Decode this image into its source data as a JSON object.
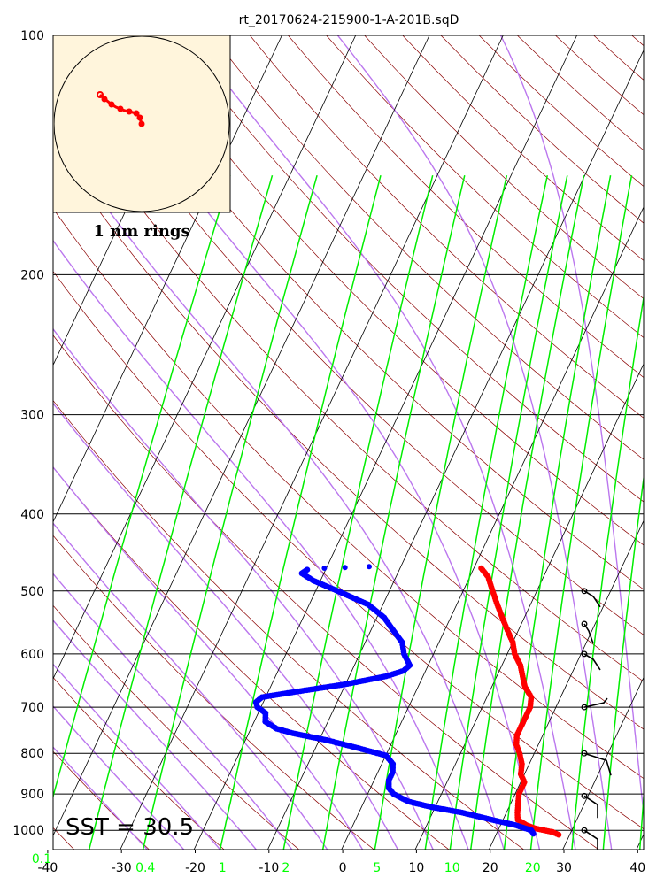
{
  "chart_data": {
    "type": "skew-t log-p",
    "title": "rt_20170624-215900-1-A-201B.sqD",
    "pressure_ticks": [
      100,
      200,
      300,
      400,
      500,
      600,
      700,
      800,
      900,
      1000
    ],
    "temperature_ticks": [
      -40,
      -30,
      -20,
      -10,
      0,
      10,
      20,
      30,
      40
    ],
    "mixing_ratio_ticks": [
      {
        "label": "0.1",
        "value": 0.1
      },
      {
        "label": "0.4",
        "value": 0.4
      },
      {
        "label": "1",
        "value": 1
      },
      {
        "label": "2",
        "value": 2
      },
      {
        "label": "5",
        "value": 5
      },
      {
        "label": "10",
        "value": 10
      },
      {
        "label": "20",
        "value": 20
      }
    ],
    "xlim": [
      -40,
      40
    ],
    "ylim": [
      1050,
      100
    ],
    "sst_label": "SST = 30.5",
    "hodograph_label": "1 nm rings",
    "colors": {
      "temperature": "#ff0000",
      "dewpoint": "#0000ff",
      "dry_adiabat": "#8b0000",
      "moist_adiabat": "#bb77ee",
      "mixing_ratio": "#00ee00",
      "isotherm": "#000000",
      "hodograph_bg": "#fff5dc",
      "hodograph_trace": "#ff0000",
      "wind_barb": "#000000"
    },
    "temperature_series": [
      [
        1013,
        28.5
      ],
      [
        1005,
        27.5
      ],
      [
        995,
        25
      ],
      [
        985,
        23.5
      ],
      [
        970,
        22
      ],
      [
        950,
        21.5
      ],
      [
        925,
        21
      ],
      [
        900,
        20.5
      ],
      [
        870,
        20.5
      ],
      [
        850,
        19.5
      ],
      [
        825,
        19
      ],
      [
        800,
        18
      ],
      [
        780,
        17
      ],
      [
        760,
        16.5
      ],
      [
        740,
        16.5
      ],
      [
        720,
        16.5
      ],
      [
        700,
        16.5
      ],
      [
        680,
        16
      ],
      [
        660,
        14.5
      ],
      [
        640,
        13.5
      ],
      [
        620,
        12.5
      ],
      [
        600,
        11
      ],
      [
        580,
        10
      ],
      [
        560,
        8.5
      ],
      [
        540,
        7
      ],
      [
        520,
        5.5
      ],
      [
        500,
        4
      ],
      [
        480,
        2.5
      ],
      [
        468,
        1
      ]
    ],
    "dewpoint_series": [
      [
        1010,
        25
      ],
      [
        1000,
        24.5
      ],
      [
        985,
        22
      ],
      [
        970,
        18.5
      ],
      [
        950,
        14
      ],
      [
        935,
        9.5
      ],
      [
        920,
        6
      ],
      [
        900,
        3.5
      ],
      [
        885,
        2.5
      ],
      [
        865,
        2
      ],
      [
        845,
        2
      ],
      [
        825,
        1.5
      ],
      [
        805,
        0
      ],
      [
        785,
        -5
      ],
      [
        770,
        -9
      ],
      [
        755,
        -14
      ],
      [
        745,
        -16.5
      ],
      [
        730,
        -18.5
      ],
      [
        712,
        -19
      ],
      [
        700,
        -20.5
      ],
      [
        690,
        -21
      ],
      [
        680,
        -20.5
      ],
      [
        670,
        -16.5
      ],
      [
        655,
        -10
      ],
      [
        640,
        -5
      ],
      [
        630,
        -3
      ],
      [
        620,
        -2.5
      ],
      [
        600,
        -4
      ],
      [
        580,
        -5
      ],
      [
        560,
        -7
      ],
      [
        540,
        -9
      ],
      [
        520,
        -12
      ],
      [
        500,
        -17
      ],
      [
        485,
        -21
      ],
      [
        475,
        -23
      ],
      [
        470,
        -22.5
      ],
      [
        468,
        -20.5
      ],
      [
        467,
        -18
      ],
      [
        466,
        -15
      ]
    ],
    "wind_barbs": [
      {
        "pressure": 1000,
        "speed_kt": 10
      },
      {
        "pressure": 905,
        "speed_kt": 10
      },
      {
        "pressure": 800,
        "speed_kt": 15
      },
      {
        "pressure": 700,
        "speed_kt": 10
      },
      {
        "pressure": 600,
        "speed_kt": 10
      },
      {
        "pressure": 550,
        "speed_kt": 10
      },
      {
        "pressure": 500,
        "speed_kt": 10
      }
    ]
  }
}
